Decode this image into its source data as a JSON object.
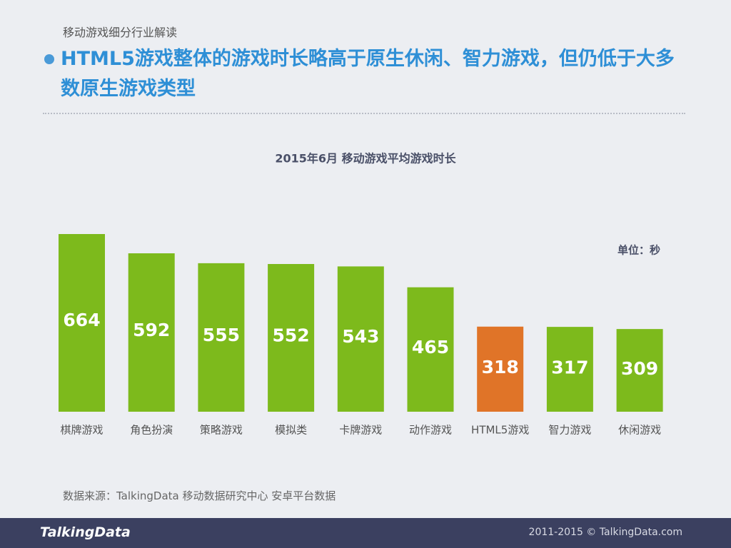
{
  "header": {
    "section": "移动游戏细分行业解读",
    "headline": "HTML5游戏整体的游戏时长略高于原生休闲、智力游戏，但仍低于大多数原生游戏类型"
  },
  "chart_data": {
    "type": "bar",
    "title": "2015年6月 移动游戏平均游戏时长",
    "unit": "单位：秒",
    "categories": [
      "棋牌游戏",
      "角色扮演",
      "策略游戏",
      "模拟类",
      "卡牌游戏",
      "动作游戏",
      "HTML5游戏",
      "智力游戏",
      "休闲游戏"
    ],
    "values": [
      664,
      592,
      555,
      552,
      543,
      465,
      318,
      317,
      309
    ],
    "colors": [
      "#7dba1c",
      "#7dba1c",
      "#7dba1c",
      "#7dba1c",
      "#7dba1c",
      "#7dba1c",
      "#e07428",
      "#7dba1c",
      "#7dba1c"
    ]
  },
  "footer": {
    "source": "数据来源：TalkingData 移动数据研究中心 安卓平台数据",
    "logo": "TalkingData",
    "copyright": "2011-2015 © TalkingData.com"
  }
}
